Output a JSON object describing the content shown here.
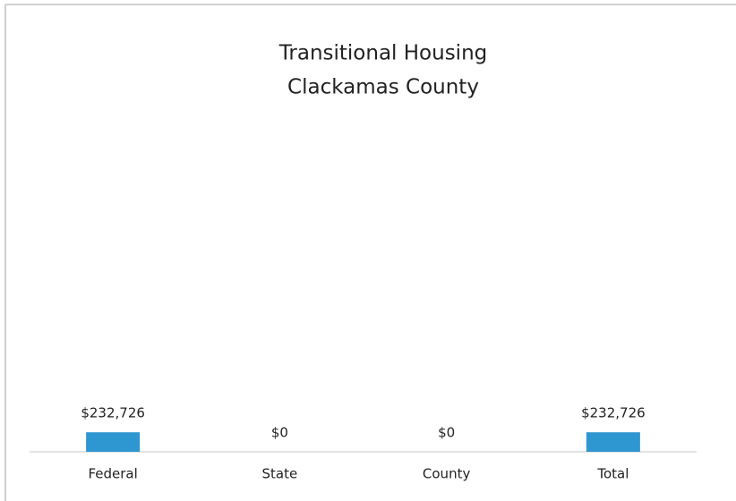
{
  "chart_data": {
    "type": "bar",
    "title": "Transitional Housing",
    "subtitle": "Clackamas County",
    "categories": [
      "Federal",
      "State",
      "County",
      "Total"
    ],
    "values": [
      232726,
      0,
      0,
      232726
    ],
    "value_labels": [
      "$232,726",
      "$0",
      "$0",
      "$232,726"
    ],
    "color": "#2e96d0",
    "ylim": [
      0,
      4000000
    ]
  }
}
